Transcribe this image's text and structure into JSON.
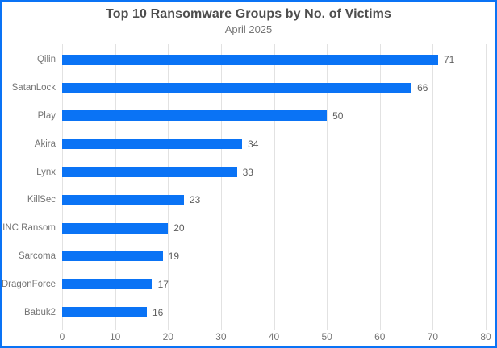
{
  "chart_data": {
    "type": "bar",
    "orientation": "horizontal",
    "title": "Top 10 Ransomware Groups by No. of Victims",
    "subtitle": "April 2025",
    "categories": [
      "Qilin",
      "SatanLock",
      "Play",
      "Akira",
      "Lynx",
      "KillSec",
      "INC Ransom",
      "Sarcoma",
      "DragonForce",
      "Babuk2"
    ],
    "values": [
      71,
      66,
      50,
      34,
      33,
      23,
      20,
      19,
      17,
      16
    ],
    "value_labels": [
      "71",
      "66",
      "50",
      "34",
      "33",
      "23",
      "20",
      "19",
      "17",
      "16"
    ],
    "xticks": [
      "0",
      "10",
      "20",
      "30",
      "40",
      "50",
      "60",
      "70",
      "80"
    ],
    "xlim": [
      0,
      80
    ],
    "xlabel": "",
    "ylabel": "",
    "grid": true,
    "legend": false,
    "bar_color": "#0a73f5",
    "frame_border_color": "#0a73f5",
    "gridline_color": "#e2e2e2",
    "title_color": "#4e4e4e",
    "label_color": "#757575"
  }
}
